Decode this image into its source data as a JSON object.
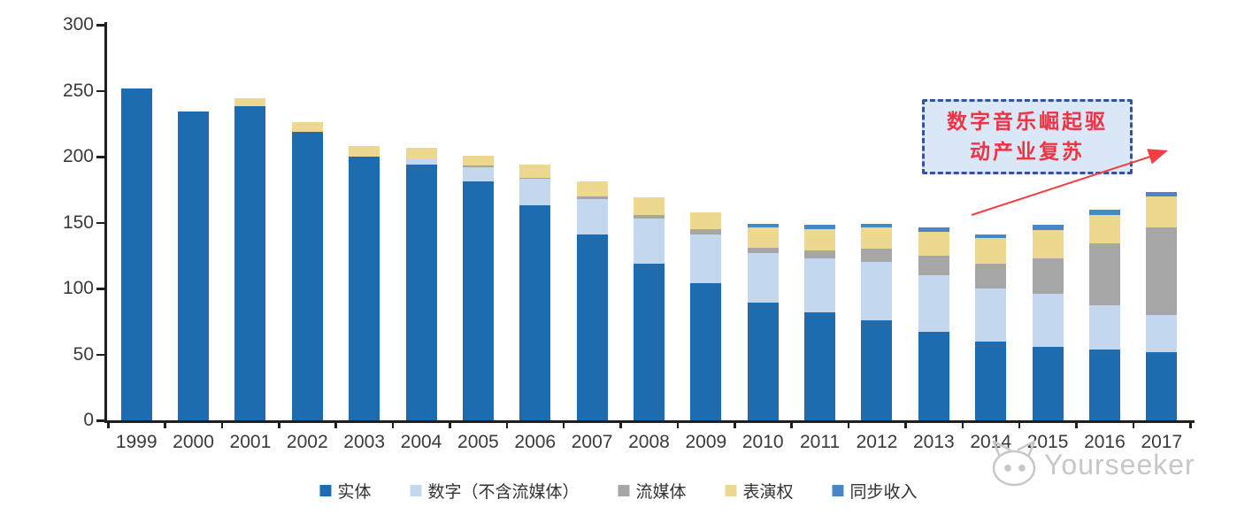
{
  "chart_data": {
    "type": "bar",
    "stacked": true,
    "title": "",
    "categories": [
      "1999",
      "2000",
      "2001",
      "2002",
      "2003",
      "2004",
      "2005",
      "2006",
      "2007",
      "2008",
      "2009",
      "2010",
      "2011",
      "2012",
      "2013",
      "2014",
      "2015",
      "2016",
      "2017"
    ],
    "series": [
      {
        "key": "physical",
        "name": "实体",
        "color": "#1d6cb0",
        "values": [
          252,
          234,
          238,
          219,
          200,
          194,
          181,
          163,
          141,
          119,
          104,
          89,
          82,
          76,
          67,
          60,
          56,
          54,
          52
        ]
      },
      {
        "key": "digital",
        "name": "数字（不含流媒体）",
        "color": "#c3d8ee",
        "values": [
          0,
          0,
          0,
          0,
          0,
          4,
          11,
          20,
          27,
          34,
          37,
          38,
          41,
          44,
          43,
          40,
          40,
          33,
          28
        ]
      },
      {
        "key": "streaming",
        "name": "流媒体",
        "color": "#a6a6a6",
        "values": [
          0,
          0,
          0,
          0,
          0,
          0,
          1,
          1,
          2,
          3,
          4,
          4,
          6,
          10,
          15,
          19,
          27,
          47,
          66
        ]
      },
      {
        "key": "performance",
        "name": "表演权",
        "color": "#ecd88e",
        "values": [
          0,
          0,
          6,
          7,
          8,
          9,
          8,
          10,
          11,
          13,
          13,
          15,
          16,
          16,
          18,
          19,
          21,
          22,
          24
        ]
      },
      {
        "key": "sync",
        "name": "同步收入",
        "color": "#4a86c4",
        "values": [
          0,
          0,
          0,
          0,
          0,
          0,
          0,
          0,
          0,
          0,
          0,
          3,
          3,
          3,
          3,
          3,
          4,
          4,
          3
        ]
      }
    ],
    "ylim": [
      0,
      300
    ],
    "yticks": [
      0,
      50,
      100,
      150,
      200,
      250,
      300
    ],
    "grid": false,
    "legend_position": "bottom"
  },
  "annotation": {
    "text": "数字音乐崛起驱动产业复苏",
    "line1": "数字音乐崛起驱",
    "line2": "动产业复苏",
    "box_fill": "#d9e7f6",
    "border_color": "#33539c",
    "text_color": "#f03245",
    "arrow_color": "#f04043"
  },
  "watermark": {
    "icon": "cat-logo-icon",
    "text": "Yourseeker",
    "color": "#c7c7c7"
  }
}
